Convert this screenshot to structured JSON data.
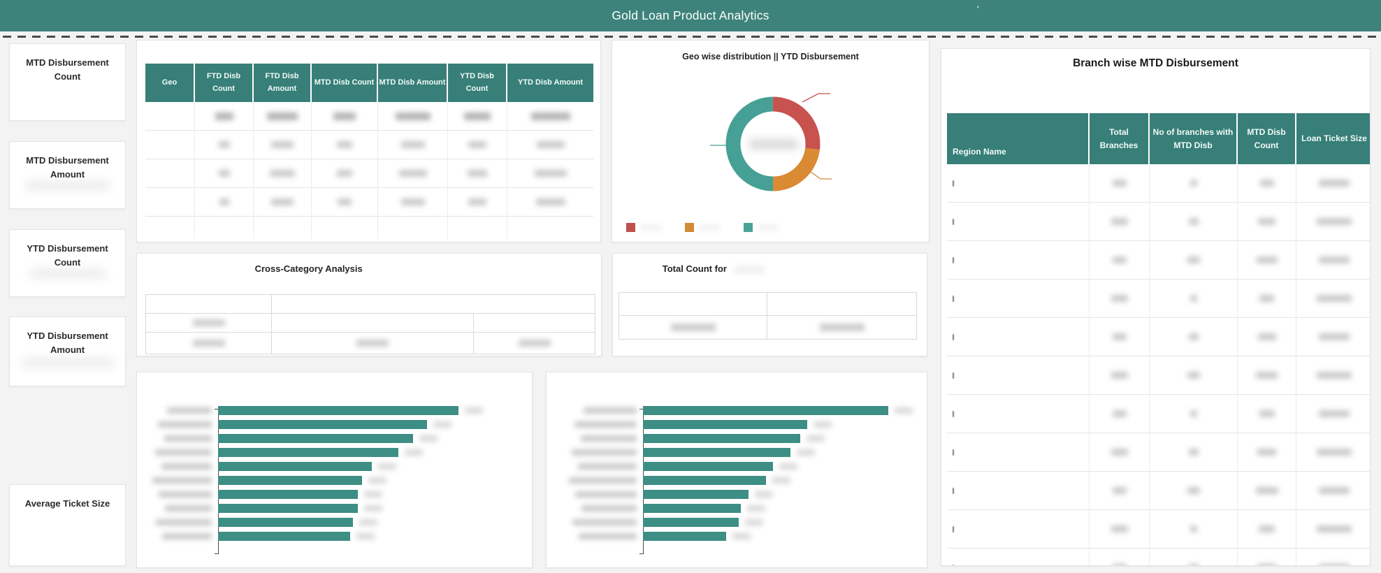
{
  "header": {
    "title": "Gold Loan Product Analytics",
    "mark": "'"
  },
  "sidebar": {
    "cards": [
      {
        "label": "MTD Disbursement Count"
      },
      {
        "label": "MTD Disbursement Amount"
      },
      {
        "label": "YTD Disbursement Count"
      },
      {
        "label": "YTD Disbursement Amount"
      },
      {
        "label": "Average Ticket Size"
      }
    ]
  },
  "geo_table": {
    "columns": [
      "Geo",
      "FTD Disb Count",
      "FTD Disb Amount",
      "MTD Disb Count",
      "MTD Disb Amount",
      "YTD Disb Count",
      "YTD Disb Amount"
    ],
    "visible_rows": 4
  },
  "donut_panel": {
    "title": "Geo wise distribution || YTD Disbursement"
  },
  "cross_panel": {
    "title": "Cross-Category Analysis"
  },
  "total_panel": {
    "title": "Total Count for"
  },
  "branch_table": {
    "title": "Branch wise MTD Disbursement",
    "columns": [
      "Region Name",
      "Total Branches",
      "No of branches with MTD Disb",
      "MTD Disb Count",
      "Loan Ticket Size"
    ],
    "visible_rows": 10
  },
  "colors": {
    "header_teal": "#3d837b",
    "table_header_teal": "#377f78",
    "bar_teal": "#3d8e85",
    "donut_teal": "#46a096",
    "donut_red": "#c7524e",
    "donut_orange": "#d98a33"
  },
  "chart_data": [
    {
      "type": "pie",
      "subtype": "donut",
      "title": "Geo wise distribution || YTD Disbursement",
      "labels": [
        "",
        "",
        ""
      ],
      "values_pct": [
        27,
        23,
        50
      ],
      "colors": [
        "#c7524e",
        "#d98a33",
        "#46a096"
      ],
      "legend_position": "bottom-left",
      "center_label": ""
    },
    {
      "type": "bar",
      "orientation": "horizontal",
      "title": "",
      "categories": [
        "",
        "",
        "",
        "",
        "",
        "",
        "",
        "",
        "",
        ""
      ],
      "values_relative_pct": [
        100,
        87,
        81,
        75,
        64,
        60,
        58,
        58,
        56,
        55
      ],
      "bar_color": "#3d8e85"
    },
    {
      "type": "bar",
      "orientation": "horizontal",
      "title": "",
      "categories": [
        "",
        "",
        "",
        "",
        "",
        "",
        "",
        "",
        "",
        ""
      ],
      "values_relative_pct": [
        100,
        67,
        64,
        60,
        53,
        50,
        43,
        40,
        39,
        34
      ],
      "bar_color": "#3d8e85"
    }
  ]
}
